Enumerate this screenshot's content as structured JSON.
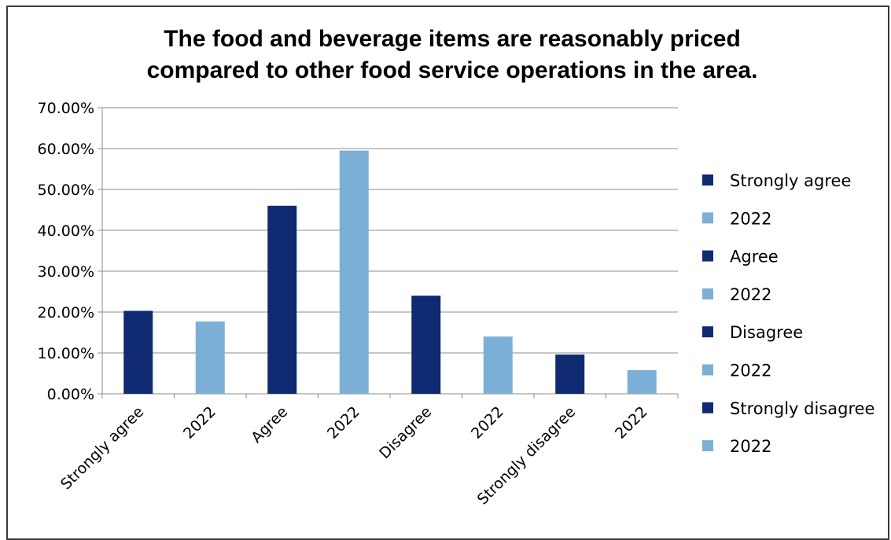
{
  "chart_data": {
    "type": "bar",
    "title_lines": [
      "The food and beverage items are reasonably priced",
      "compared to other food service operations in the area."
    ],
    "categories": [
      "Strongly agree",
      "2022",
      "Agree",
      "2022",
      "Disagree",
      "2022",
      "Strongly disagree",
      "2022"
    ],
    "values": [
      0.203,
      0.177,
      0.46,
      0.595,
      0.24,
      0.14,
      0.096,
      0.058
    ],
    "colors": [
      "#0f2a70",
      "#7bafd6",
      "#0f2a70",
      "#7bafd6",
      "#0f2a70",
      "#7bafd6",
      "#0f2a70",
      "#7bafd6"
    ],
    "ylim": [
      0,
      0.7
    ],
    "y_ticks": [
      {
        "value": 0.0,
        "label": "0.00%"
      },
      {
        "value": 0.1,
        "label": "10.00%"
      },
      {
        "value": 0.2,
        "label": "20.00%"
      },
      {
        "value": 0.3,
        "label": "30.00%"
      },
      {
        "value": 0.4,
        "label": "40.00%"
      },
      {
        "value": 0.5,
        "label": "50.00%"
      },
      {
        "value": 0.6,
        "label": "60.00%"
      },
      {
        "value": 0.7,
        "label": "70.00%"
      }
    ],
    "grid": true,
    "legend_position": "right",
    "legend": [
      {
        "label": "Strongly agree",
        "color": "#0f2a70"
      },
      {
        "label": "2022",
        "color": "#7bafd6"
      },
      {
        "label": "Agree",
        "color": "#0f2a70"
      },
      {
        "label": "2022",
        "color": "#7bafd6"
      },
      {
        "label": "Disagree",
        "color": "#0f2a70"
      },
      {
        "label": "2022",
        "color": "#7bafd6"
      },
      {
        "label": "Strongly disagree",
        "color": "#0f2a70"
      },
      {
        "label": "2022",
        "color": "#7bafd6"
      }
    ]
  }
}
